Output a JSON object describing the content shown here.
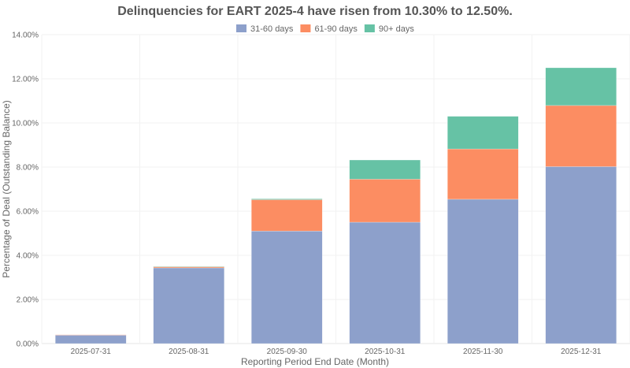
{
  "chart_data": {
    "type": "bar",
    "stacked": true,
    "title": "Delinquencies for EART 2025-4 have risen from 10.30% to 12.50%.",
    "xlabel": "Reporting Period End Date (Month)",
    "ylabel": "Percentage of Deal (Outstanding Balance)",
    "ylim": [
      0,
      14
    ],
    "yticks": [
      "0.00%",
      "2.00%",
      "4.00%",
      "6.00%",
      "8.00%",
      "10.00%",
      "12.00%",
      "14.00%"
    ],
    "grid": true,
    "legend_position": "top",
    "categories": [
      "2025-07-31",
      "2025-08-31",
      "2025-09-30",
      "2025-10-31",
      "2025-11-30",
      "2025-12-31"
    ],
    "series": [
      {
        "name": "31-60 days",
        "color": "#8da0cb",
        "values": [
          0.38,
          3.43,
          5.1,
          5.5,
          6.54,
          8.02
        ]
      },
      {
        "name": "61-90 days",
        "color": "#fc8d62",
        "values": [
          0.02,
          0.05,
          1.42,
          1.95,
          2.28,
          2.77
        ]
      },
      {
        "name": "90+ days",
        "color": "#66c2a5",
        "values": [
          0.0,
          0.02,
          0.04,
          0.87,
          1.48,
          1.71
        ]
      }
    ]
  }
}
